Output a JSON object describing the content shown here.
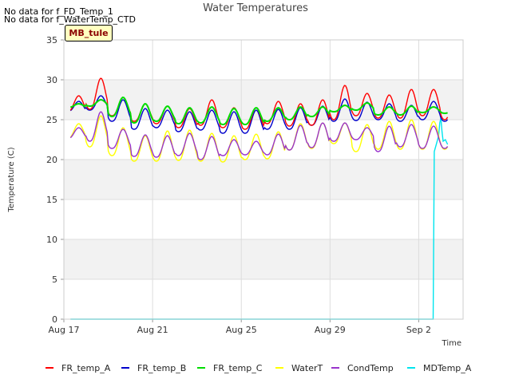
{
  "notes": [
    "No data for f_FD_Temp_1",
    "No data for f_WaterTemp_CTD"
  ],
  "site_tag": "MB_tule",
  "chart_data": {
    "type": "line",
    "title": "Water Temperatures",
    "xlabel": "Time",
    "ylabel": "Temperature (C)",
    "xlim": [
      0,
      18.0
    ],
    "ylim": [
      0,
      35
    ],
    "yticks": [
      0,
      5,
      10,
      15,
      20,
      25,
      30,
      35
    ],
    "xticks": [
      {
        "label": "Aug 17",
        "value": 0
      },
      {
        "label": "Aug 21",
        "value": 4
      },
      {
        "label": "Aug 25",
        "value": 8
      },
      {
        "label": "Aug 29",
        "value": 12
      },
      {
        "label": "Sep 2",
        "value": 16
      }
    ],
    "grid": true,
    "banded_background": true,
    "legend_position": "bottom",
    "x_range_shown": [
      0.3,
      17.3
    ],
    "series": [
      {
        "name": "FR_temp_A",
        "color": "#ff0000",
        "daily_min": [
          26.0,
          26.3,
          25.5,
          24.8,
          24.5,
          24.0,
          24.3,
          24.0,
          23.8,
          24.5,
          24.2,
          24.3,
          25.0,
          25.5,
          25.2,
          25.2,
          25.5,
          25.0,
          25.0
        ],
        "daily_max": [
          28.0,
          30.2,
          27.8,
          27.0,
          26.7,
          26.4,
          27.5,
          26.5,
          26.5,
          27.3,
          27.0,
          27.5,
          29.3,
          28.3,
          28.1,
          28.8,
          28.8,
          28.5,
          28.0
        ]
      },
      {
        "name": "FR_temp_B",
        "color": "#0000cc",
        "daily_min": [
          26.0,
          26.2,
          24.8,
          23.8,
          24.0,
          23.5,
          23.7,
          23.3,
          23.3,
          23.8,
          23.8,
          24.3,
          24.8,
          24.9,
          25.0,
          24.8,
          25.0,
          24.8,
          24.8
        ],
        "daily_max": [
          27.3,
          28.0,
          27.5,
          26.4,
          26.2,
          26.0,
          26.2,
          26.0,
          26.2,
          26.3,
          26.5,
          26.7,
          27.6,
          27.2,
          27.0,
          26.8,
          27.3,
          27.2,
          27.0
        ]
      },
      {
        "name": "FR_temp_C",
        "color": "#00dd00",
        "daily_min": [
          26.5,
          26.7,
          25.4,
          24.6,
          24.8,
          24.5,
          24.6,
          24.4,
          24.4,
          24.8,
          25.0,
          25.4,
          26.0,
          26.2,
          25.6,
          25.6,
          25.9,
          25.8,
          25.8
        ],
        "daily_max": [
          27.0,
          27.5,
          27.8,
          27.0,
          26.7,
          26.5,
          26.6,
          26.4,
          26.5,
          26.5,
          26.6,
          26.6,
          26.8,
          27.1,
          26.6,
          26.7,
          26.6,
          26.6,
          26.6
        ]
      },
      {
        "name": "WaterT",
        "color": "#ffff00",
        "daily_min": [
          22.6,
          21.6,
          20.5,
          19.8,
          19.8,
          19.9,
          19.8,
          19.7,
          20.0,
          20.1,
          21.2,
          21.4,
          22.0,
          21.0,
          21.3,
          21.3,
          21.3,
          21.3,
          21.3
        ],
        "daily_max": [
          24.5,
          25.5,
          24.0,
          23.0,
          23.6,
          23.7,
          23.3,
          23.0,
          23.2,
          23.5,
          24.5,
          24.6,
          24.6,
          24.4,
          24.8,
          25.0,
          24.8,
          24.8,
          24.8
        ]
      },
      {
        "name": "CondTemp",
        "color": "#9933cc",
        "daily_min": [
          22.6,
          22.3,
          21.4,
          20.4,
          20.3,
          20.5,
          20.0,
          20.5,
          20.6,
          20.6,
          21.2,
          21.5,
          22.3,
          22.5,
          21.0,
          21.6,
          21.4,
          21.4,
          21.4
        ],
        "daily_max": [
          24.0,
          26.0,
          23.8,
          23.1,
          23.0,
          23.3,
          22.9,
          22.5,
          22.3,
          23.2,
          24.3,
          24.6,
          24.6,
          24.0,
          24.2,
          24.4,
          24.2,
          24.2,
          24.2
        ]
      },
      {
        "name": "MDTemp_A",
        "color": "#00e5ee",
        "points": [
          [
            0.3,
            0
          ],
          [
            16.65,
            0
          ],
          [
            16.7,
            21.0
          ],
          [
            16.8,
            22.0
          ],
          [
            16.9,
            23.0
          ],
          [
            16.95,
            24.6
          ],
          [
            17.0,
            25.2
          ],
          [
            17.05,
            23.5
          ],
          [
            17.1,
            22.3
          ],
          [
            17.2,
            22.5
          ],
          [
            17.3,
            21.9
          ]
        ]
      }
    ]
  }
}
